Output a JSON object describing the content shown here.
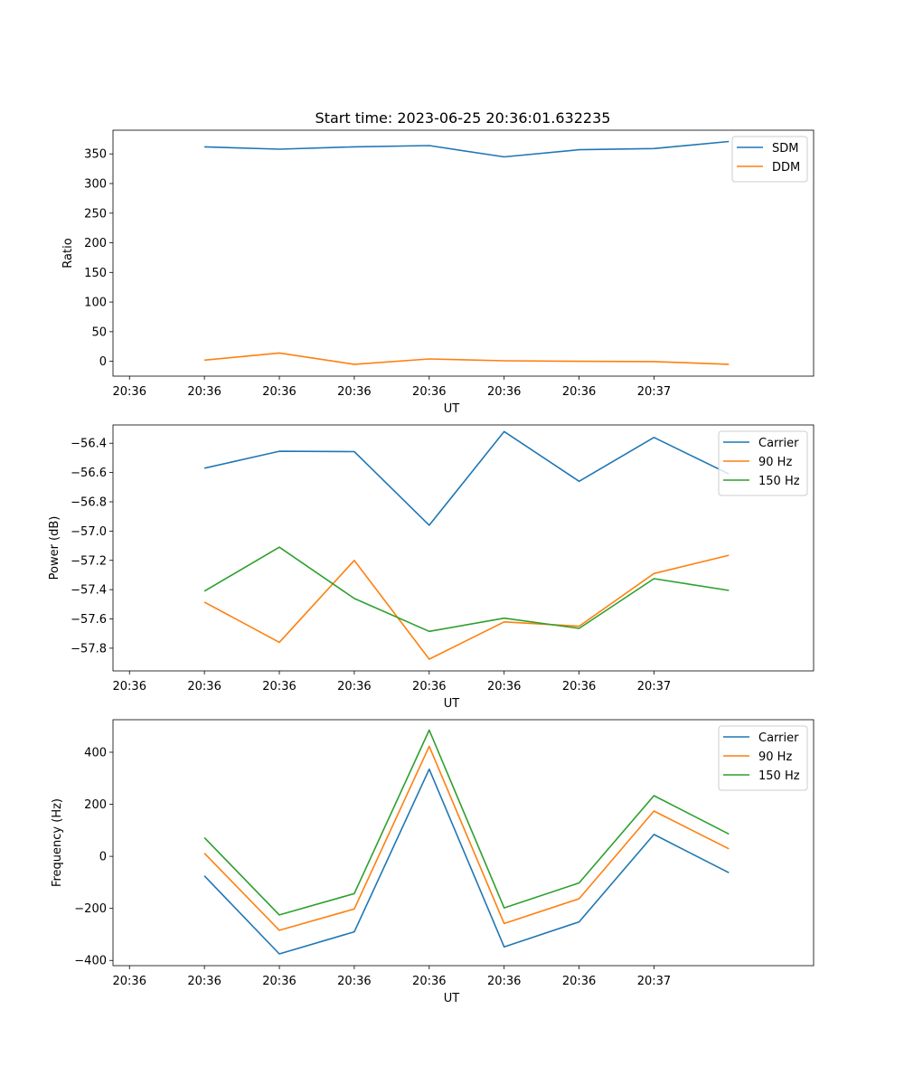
{
  "figure_title": "Start time: 2023-06-25 20:36:01.632235",
  "colors": {
    "blue": "#1f77b4",
    "orange": "#ff7f0e",
    "green": "#2ca02c"
  },
  "chart_data": [
    {
      "type": "line",
      "title": "Start time: 2023-06-25 20:36:01.632235",
      "xlabel": "UT",
      "ylabel": "Ratio",
      "xticks": [
        "20:36",
        "20:36",
        "20:36",
        "20:36",
        "20:36",
        "20:36",
        "20:36",
        "20:37"
      ],
      "x": [
        1,
        2,
        3,
        4,
        5,
        6,
        7,
        8
      ],
      "xlim": [
        -0.22,
        9.13
      ],
      "ylim": [
        -25,
        390
      ],
      "yticks": [
        0,
        50,
        100,
        150,
        200,
        250,
        300,
        350
      ],
      "legend": "top-right",
      "grid": false,
      "series": [
        {
          "name": "SDM",
          "color": "#1f77b4",
          "values": [
            362,
            358,
            362,
            364,
            345,
            357,
            359,
            371
          ]
        },
        {
          "name": "DDM",
          "color": "#ff7f0e",
          "values": [
            2,
            14,
            -5,
            4,
            1,
            0,
            -0.5,
            -5
          ]
        }
      ]
    },
    {
      "type": "line",
      "title": "",
      "xlabel": "UT",
      "ylabel": "Power (dB)",
      "xticks": [
        "20:36",
        "20:36",
        "20:36",
        "20:36",
        "20:36",
        "20:36",
        "20:36",
        "20:37"
      ],
      "x": [
        1,
        2,
        3,
        4,
        5,
        6,
        7,
        8
      ],
      "xlim": [
        -0.22,
        9.13
      ],
      "ylim": [
        -57.955,
        -56.275
      ],
      "yticks": [
        -57.8,
        -57.6,
        -57.4,
        -57.2,
        -57.0,
        -56.8,
        -56.6,
        -56.4
      ],
      "ytick_labels": [
        "−57.8",
        "−57.6",
        "−57.4",
        "−57.2",
        "−57.0",
        "−56.8",
        "−56.6",
        "−56.4"
      ],
      "legend": "top-right",
      "grid": false,
      "series": [
        {
          "name": "Carrier",
          "color": "#1f77b4",
          "values": [
            -56.57,
            -56.455,
            -56.457,
            -56.96,
            -56.32,
            -56.66,
            -56.36,
            -56.61
          ]
        },
        {
          "name": "90 Hz",
          "color": "#ff7f0e",
          "values": [
            -57.485,
            -57.76,
            -57.2,
            -57.875,
            -57.62,
            -57.65,
            -57.29,
            -57.165
          ]
        },
        {
          "name": "150 Hz",
          "color": "#2ca02c",
          "values": [
            -57.41,
            -57.11,
            -57.46,
            -57.685,
            -57.595,
            -57.665,
            -57.325,
            -57.405
          ]
        }
      ]
    },
    {
      "type": "line",
      "title": "",
      "xlabel": "UT",
      "ylabel": "Frequency (Hz)",
      "xticks": [
        "20:36",
        "20:36",
        "20:36",
        "20:36",
        "20:36",
        "20:36",
        "20:36",
        "20:37"
      ],
      "x": [
        1,
        2,
        3,
        4,
        5,
        6,
        7,
        8
      ],
      "xlim": [
        -0.22,
        9.13
      ],
      "ylim": [
        -420,
        525
      ],
      "yticks": [
        -400,
        -200,
        0,
        200,
        400
      ],
      "ytick_labels": [
        "−400",
        "−200",
        "0",
        "200",
        "400"
      ],
      "legend": "top-right",
      "grid": false,
      "series": [
        {
          "name": "Carrier",
          "color": "#1f77b4",
          "values": [
            -75,
            -375,
            -290,
            335,
            -348,
            -252,
            84,
            -63
          ]
        },
        {
          "name": "90 Hz",
          "color": "#ff7f0e",
          "values": [
            12,
            -284,
            -202,
            423,
            -258,
            -163,
            174,
            29
          ]
        },
        {
          "name": "150 Hz",
          "color": "#2ca02c",
          "values": [
            72,
            -225,
            -143,
            485,
            -198,
            -102,
            233,
            86
          ]
        }
      ]
    }
  ]
}
